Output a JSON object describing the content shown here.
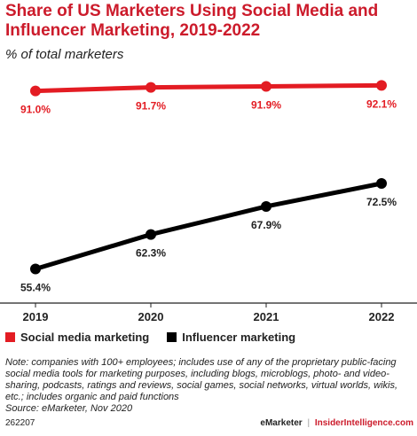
{
  "title": "Share of US Marketers Using Social Media and Influencer Marketing, 2019-2022",
  "subtitle": "% of total marketers",
  "note": "Note: companies with 100+ employees; includes use of any of the proprietary public-facing social media tools for marketing purposes, including blogs, microblogs, photo- and video-sharing, podcasts, ratings and reviews, social games, social networks, virtual worlds, wikis, etc.; includes organic and paid functions",
  "source": "Source: eMarketer, Nov 2020",
  "chart_id": "262207",
  "brand": {
    "emarketer": "eMarketer",
    "separator": "|",
    "insider": "InsiderIntelligence.com"
  },
  "colors": {
    "social": "#e31c23",
    "influencer": "#000000",
    "title": "#cc1b2b"
  },
  "chart_data": {
    "type": "line",
    "title": "Share of US Marketers Using Social Media and Influencer Marketing, 2019-2022",
    "subtitle": "% of total marketers",
    "xlabel": "",
    "ylabel": "",
    "x": [
      "2019",
      "2020",
      "2021",
      "2022"
    ],
    "ylim": [
      50,
      95
    ],
    "grid": false,
    "legend_position": "bottom-left",
    "series": [
      {
        "name": "Social media marketing",
        "color": "#e31c23",
        "values": [
          91.0,
          91.7,
          91.9,
          92.1
        ],
        "labels": [
          "91.0%",
          "91.7%",
          "91.9%",
          "92.1%"
        ]
      },
      {
        "name": "Influencer marketing",
        "color": "#000000",
        "values": [
          55.4,
          62.3,
          67.9,
          72.5
        ],
        "labels": [
          "55.4%",
          "62.3%",
          "67.9%",
          "72.5%"
        ]
      }
    ]
  }
}
